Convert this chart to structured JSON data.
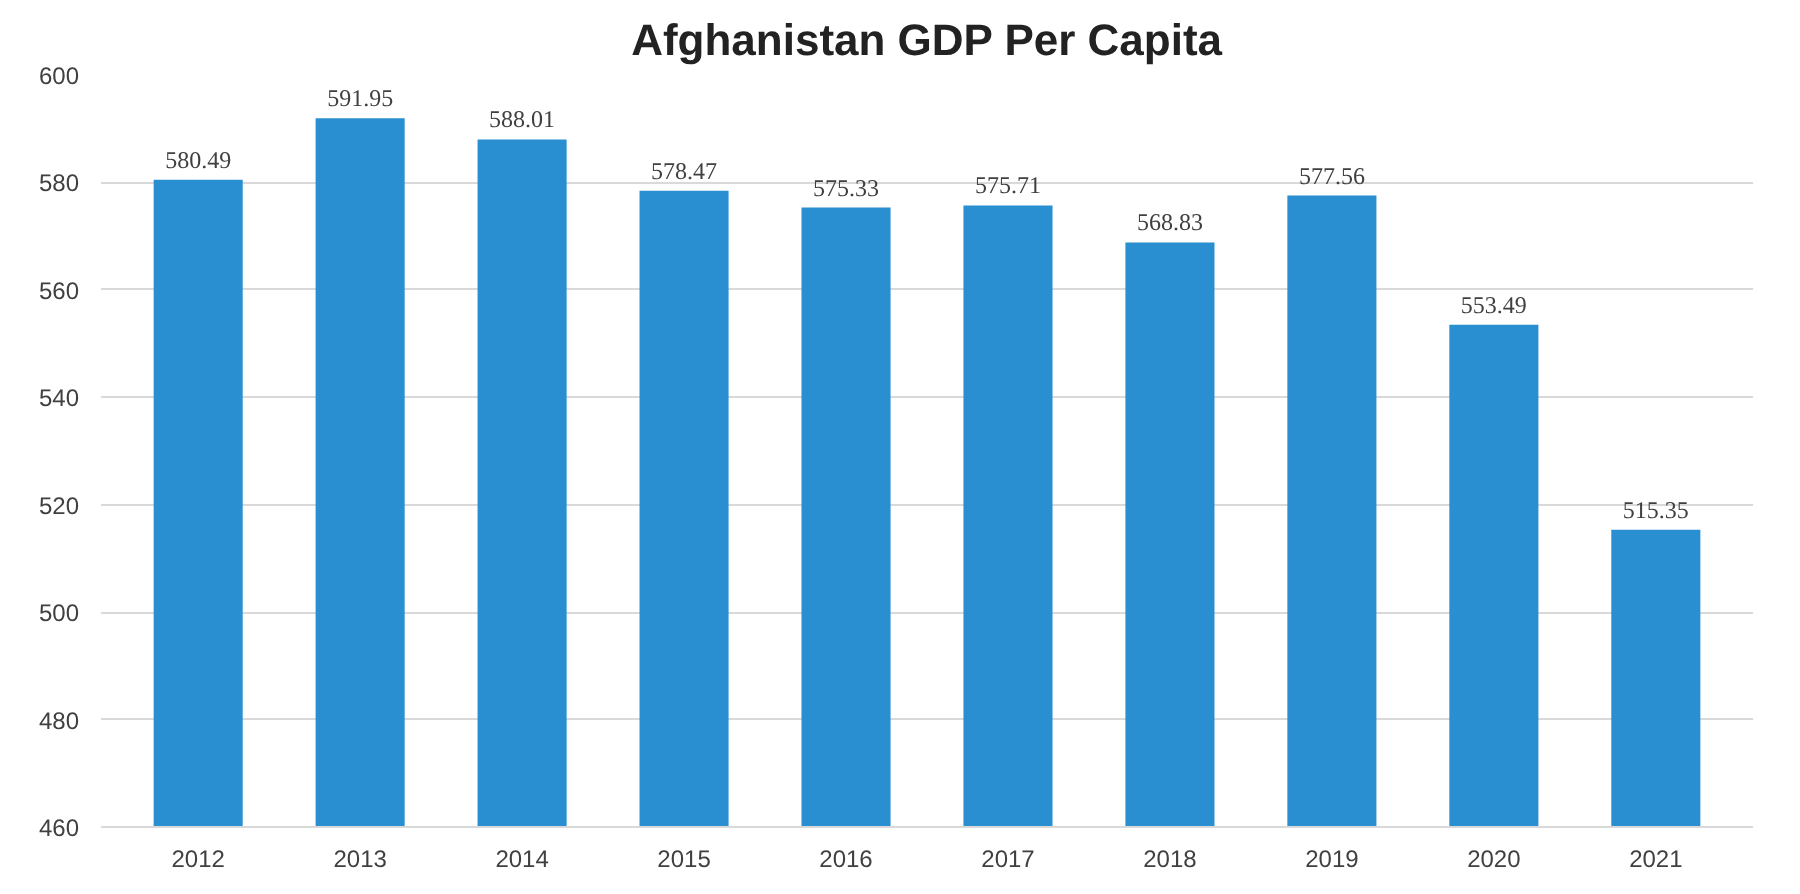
{
  "chart_data": {
    "type": "bar",
    "title": "Afghanistan GDP Per Capita",
    "categories": [
      "2012",
      "2013",
      "2014",
      "2015",
      "2016",
      "2017",
      "2018",
      "2019",
      "2020",
      "2021"
    ],
    "values": [
      580.49,
      591.95,
      588.01,
      578.47,
      575.33,
      575.71,
      568.83,
      577.56,
      553.49,
      515.35
    ],
    "color": "#2a8fd0",
    "ylim": [
      460,
      600
    ],
    "yticks": [
      460,
      480,
      500,
      520,
      540,
      560,
      580,
      600
    ],
    "grid": "y",
    "data_labels": true
  }
}
